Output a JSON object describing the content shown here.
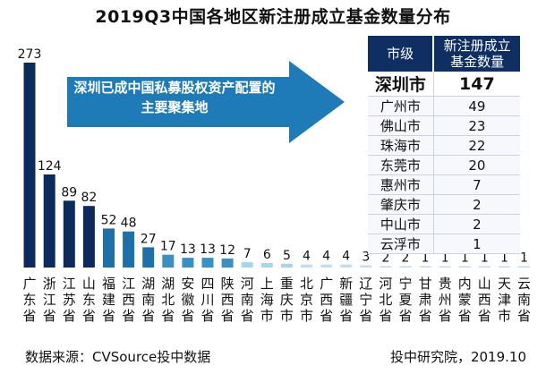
{
  "chart_data": {
    "type": "bar",
    "title": "2019Q3中国各地区新注册成立基金数量分布",
    "categories": [
      "广东省",
      "浙江省",
      "江苏省",
      "山东省",
      "福建省",
      "江西省",
      "湖南省",
      "湖北省",
      "安徽省",
      "四川省",
      "陕西省",
      "河南省",
      "上海市",
      "重庆市",
      "北京市",
      "广西省",
      "新疆省",
      "辽宁省",
      "河北省",
      "宁夏省",
      "甘肃省",
      "贵州省",
      "内蒙省",
      "山西省",
      "天津市",
      "云南省"
    ],
    "values": [
      273,
      124,
      89,
      82,
      52,
      48,
      27,
      17,
      13,
      13,
      12,
      7,
      6,
      5,
      4,
      4,
      4,
      3,
      2,
      2,
      1,
      1,
      1,
      1,
      1,
      1
    ],
    "colors": [
      "#0d2a5c",
      "#0d2a5c",
      "#0d2a5c",
      "#0d2a5c",
      "#1f6fa8",
      "#1f6fa8",
      "#1f6fa8",
      "#3b8fc4",
      "#3b8fc4",
      "#3b8fc4",
      "#3b8fc4",
      "#a9d4ee",
      "#a9d4ee",
      "#a9d4ee",
      "#c2dff2",
      "#c2dff2",
      "#c2dff2",
      "#c2dff2",
      "#c2dff2",
      "#c2dff2",
      "#c2dff2",
      "#c2dff2",
      "#c2dff2",
      "#c2dff2",
      "#c2dff2",
      "#c2dff2"
    ],
    "ylim": [
      0,
      273
    ],
    "grid": false,
    "legend": "none"
  },
  "callout": {
    "line1": "深圳已成中国私募股权资产配置的",
    "line2": "主要聚集地",
    "fill": "#1f7bb8"
  },
  "table": {
    "header": {
      "col1": "市级",
      "col2_line1": "新注册成立",
      "col2_line2": "基金数量"
    },
    "rows": [
      {
        "city": "深圳市",
        "count": "147"
      },
      {
        "city": "广州市",
        "count": "49"
      },
      {
        "city": "佛山市",
        "count": "23"
      },
      {
        "city": "珠海市",
        "count": "22"
      },
      {
        "city": "东莞市",
        "count": "20"
      },
      {
        "city": "惠州市",
        "count": "7"
      },
      {
        "city": "肇庆市",
        "count": "2"
      },
      {
        "city": "中山市",
        "count": "2"
      },
      {
        "city": "云浮市",
        "count": "1"
      }
    ]
  },
  "footer": {
    "source": "数据来源：CVSource投中数据",
    "credit": "投中研究院，2019.10"
  }
}
